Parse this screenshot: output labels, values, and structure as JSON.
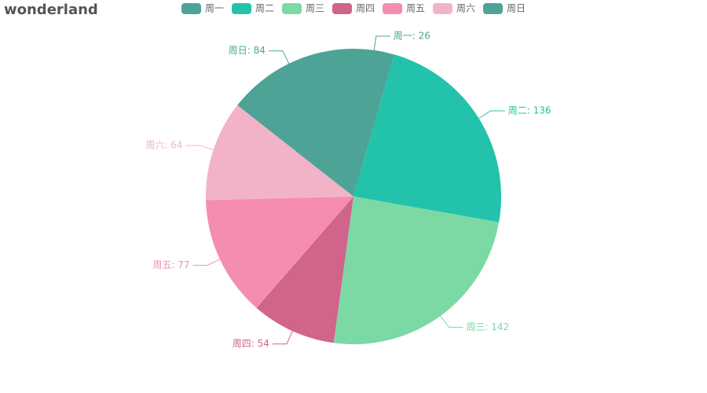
{
  "chart_data": {
    "type": "pie",
    "title": "wonderland",
    "categories": [
      "周一",
      "周二",
      "周三",
      "周四",
      "周五",
      "周六",
      "周日"
    ],
    "values": [
      26,
      136,
      142,
      54,
      77,
      64,
      84
    ],
    "value_labels": [
      "周一: 26",
      "周二: 136",
      "周三: 142",
      "周四: 54",
      "周五: 77",
      "周六: 64",
      "周日: 84"
    ],
    "colors": [
      "#4ea397",
      "#22c3aa",
      "#7bd9a5",
      "#d0648a",
      "#f58db2",
      "#f2b3c9",
      "#4ea397"
    ],
    "legend": "top"
  }
}
